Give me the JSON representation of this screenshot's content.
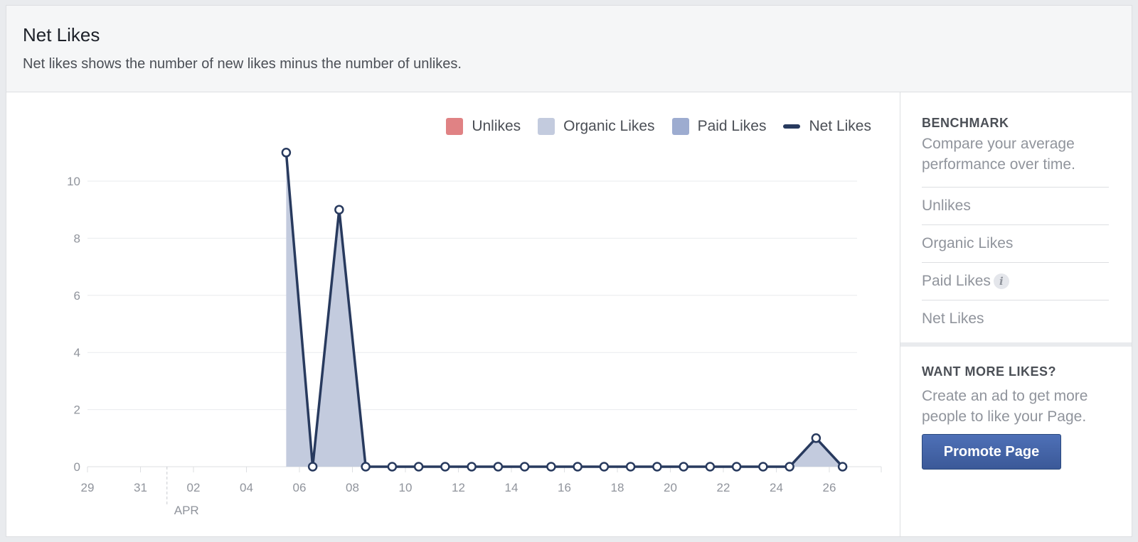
{
  "header": {
    "title": "Net Likes",
    "subtitle": "Net likes shows the number of new likes minus the number of unlikes."
  },
  "legend": {
    "unlikes": "Unlikes",
    "organic": "Organic Likes",
    "paid": "Paid Likes",
    "net": "Net Likes"
  },
  "colors": {
    "unlikes": "#e08284",
    "organic": "#c3cbde",
    "paid": "#9dacd0",
    "net": "#283a5e",
    "button": "#4267b2"
  },
  "chart_data": {
    "type": "line",
    "title": "",
    "xlabel": "",
    "ylabel": "",
    "ylim": [
      0,
      11
    ],
    "yticks": [
      0,
      2,
      4,
      6,
      8,
      10
    ],
    "xticks": [
      "29",
      "31",
      "02",
      "04",
      "06",
      "08",
      "10",
      "12",
      "14",
      "16",
      "18",
      "20",
      "22",
      "24",
      "26"
    ],
    "month_marker": "APR",
    "grid": true,
    "legend_position": "top-right",
    "x": [
      "Apr 5",
      "Apr 6",
      "Apr 7",
      "Apr 8",
      "Apr 9",
      "Apr 10",
      "Apr 11",
      "Apr 12",
      "Apr 13",
      "Apr 14",
      "Apr 15",
      "Apr 16",
      "Apr 17",
      "Apr 18",
      "Apr 19",
      "Apr 20",
      "Apr 21",
      "Apr 22",
      "Apr 23",
      "Apr 24",
      "Apr 25",
      "Apr 26"
    ],
    "series": [
      {
        "name": "Organic Likes",
        "type": "area",
        "values": [
          11,
          0,
          9,
          0,
          0,
          0,
          0,
          0,
          0,
          0,
          0,
          0,
          0,
          0,
          0,
          0,
          0,
          0,
          0,
          0,
          1,
          0
        ]
      },
      {
        "name": "Net Likes",
        "type": "line",
        "values": [
          11,
          0,
          9,
          0,
          0,
          0,
          0,
          0,
          0,
          0,
          0,
          0,
          0,
          0,
          0,
          0,
          0,
          0,
          0,
          0,
          1,
          0
        ]
      }
    ]
  },
  "benchmark": {
    "title": "BENCHMARK",
    "description": "Compare your average performance over time.",
    "items": [
      "Unlikes",
      "Organic Likes",
      "Paid Likes",
      "Net Likes"
    ],
    "info_icon": "info-icon"
  },
  "promo": {
    "title": "WANT MORE LIKES?",
    "description": "Create an ad to get more people to like your Page.",
    "button_label": "Promote Page"
  }
}
